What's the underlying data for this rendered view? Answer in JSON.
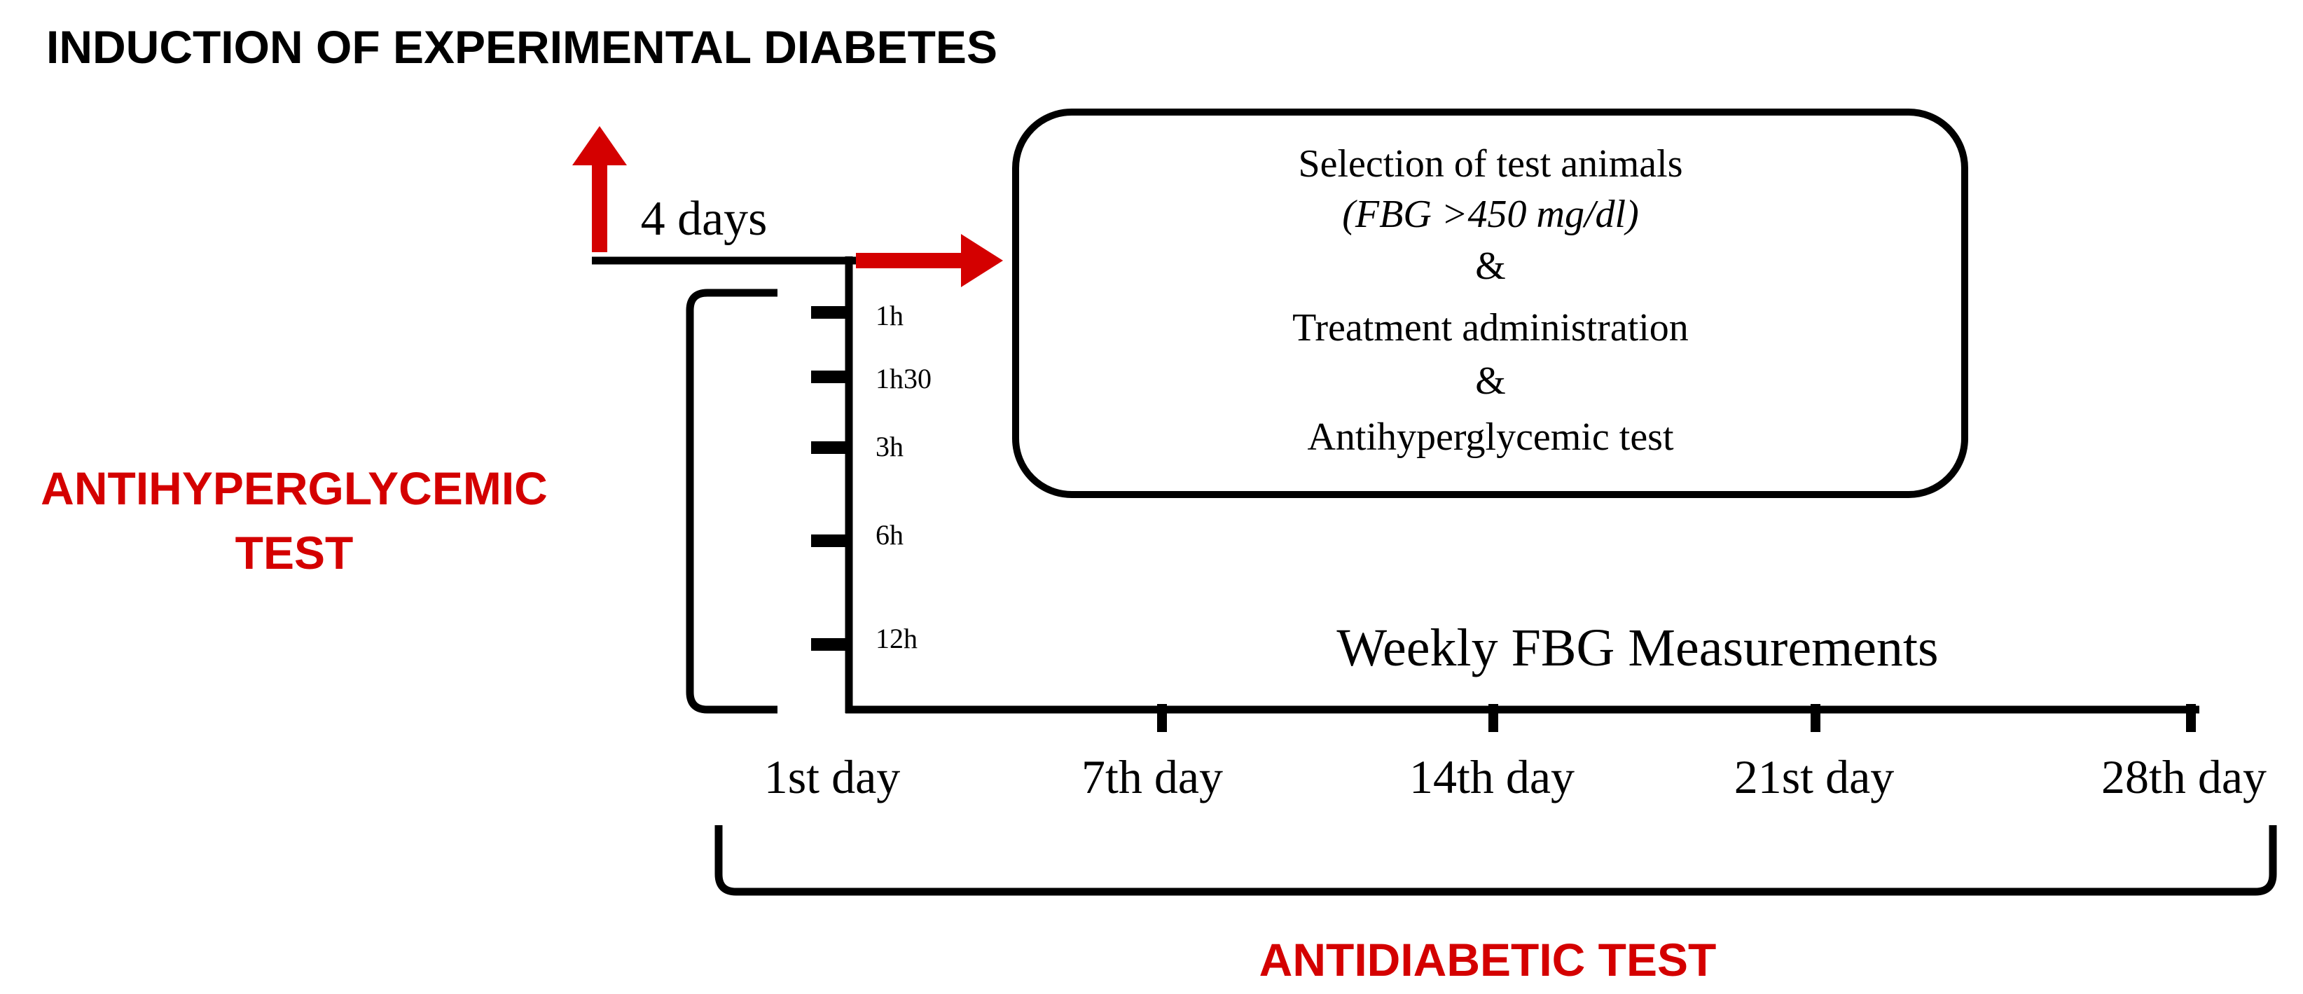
{
  "title": "INDUCTION OF EXPERIMENTAL DIABETES",
  "induction_interval": "4 days",
  "selection_box": {
    "line1": "Selection of test animals",
    "line2": "(FBG >450 mg/dl)",
    "line3": "&",
    "line4": "Treatment administration",
    "line5": "&",
    "line6": "Antihyperglycemic  test"
  },
  "hour_ticks": [
    "1h",
    "1h30",
    "3h",
    "6h",
    "12h"
  ],
  "weekly_label": "Weekly FBG Measurements",
  "day_ticks": [
    "1st day",
    "7th day",
    "14th day",
    "21st day",
    "28th day"
  ],
  "antihyperglycemic_label": [
    "ANTIHYPERGLYCEMIC",
    "TEST"
  ],
  "antidiabetic_label": "ANTIDIABETIC TEST",
  "colors": {
    "accent": "#d40000",
    "ink": "#000000",
    "background": "#ffffff"
  }
}
